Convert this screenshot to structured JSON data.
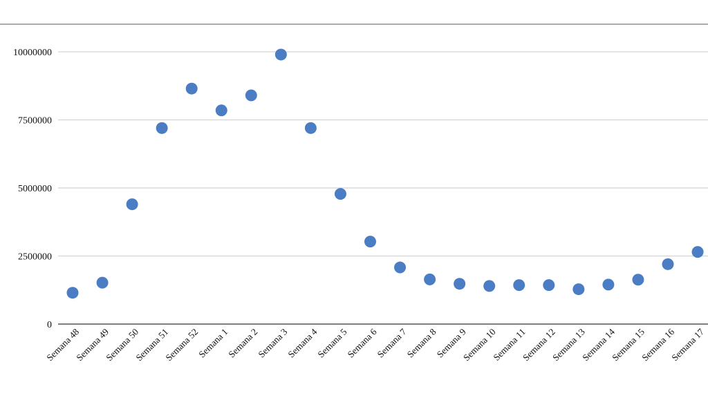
{
  "chart_data": {
    "type": "scatter",
    "title": "",
    "xlabel": "",
    "ylabel": "",
    "categories": [
      "Semana 48",
      "Semana 49",
      "Semana 50",
      "Semana 51",
      "Semana 52",
      "Semana 1",
      "Semana 2",
      "Semana 3",
      "Semana 4",
      "Semana 5",
      "Semana 6",
      "Semana 7",
      "Semana 8",
      "Semana 9",
      "Semana 10",
      "Semana 11",
      "Semana 12",
      "Semana 13",
      "Semana 14",
      "Semana 15",
      "Semana 16",
      "Semana 17"
    ],
    "values": [
      1150000,
      1520000,
      4400000,
      7200000,
      8650000,
      7850000,
      8400000,
      9900000,
      7200000,
      4780000,
      3030000,
      2080000,
      1640000,
      1480000,
      1400000,
      1430000,
      1430000,
      1280000,
      1450000,
      1630000,
      2200000,
      2650000
    ],
    "ylim": [
      0,
      10000000
    ],
    "yticks": [
      0,
      2500000,
      5000000,
      7500000,
      10000000
    ],
    "ytick_labels": [
      "0",
      "2500000",
      "5000000",
      "7500000",
      "10000000"
    ],
    "grid": true,
    "legend": "none",
    "colors": {
      "marker": "#4a7dc4",
      "grid": "#d3d3d3",
      "axis": "#555555",
      "top_rule": "#555555"
    }
  }
}
